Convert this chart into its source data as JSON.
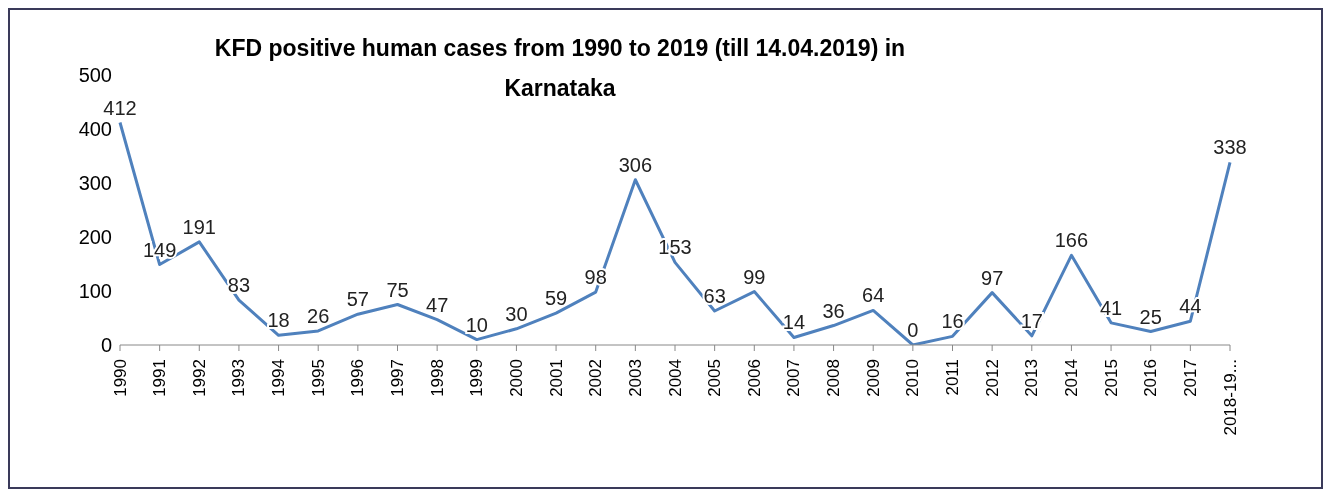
{
  "chart_data": {
    "type": "line",
    "title": "KFD positive human cases from 1990 to 2019 (till  14.04.2019) in Karnataka",
    "categories": [
      "1990",
      "1991",
      "1992",
      "1993",
      "1994",
      "1995",
      "1996",
      "1997",
      "1998",
      "1999",
      "2000",
      "2001",
      "2002",
      "2003",
      "2004",
      "2005",
      "2006",
      "2007",
      "2008",
      "2009",
      "2010",
      "2011",
      "2012",
      "2013",
      "2014",
      "2015",
      "2016",
      "2017",
      "2018-19..."
    ],
    "values": [
      412,
      149,
      191,
      83,
      18,
      26,
      57,
      75,
      47,
      10,
      30,
      59,
      98,
      306,
      153,
      63,
      99,
      14,
      36,
      64,
      0,
      16,
      97,
      17,
      166,
      41,
      25,
      44,
      338
    ],
    "color": "#4f81bd",
    "ylim": [
      0,
      500
    ],
    "yticks": [
      0,
      100,
      200,
      300,
      400,
      500
    ],
    "grid": false,
    "legend": false,
    "marker": "none",
    "line_style": "solid",
    "data_labels": true
  }
}
